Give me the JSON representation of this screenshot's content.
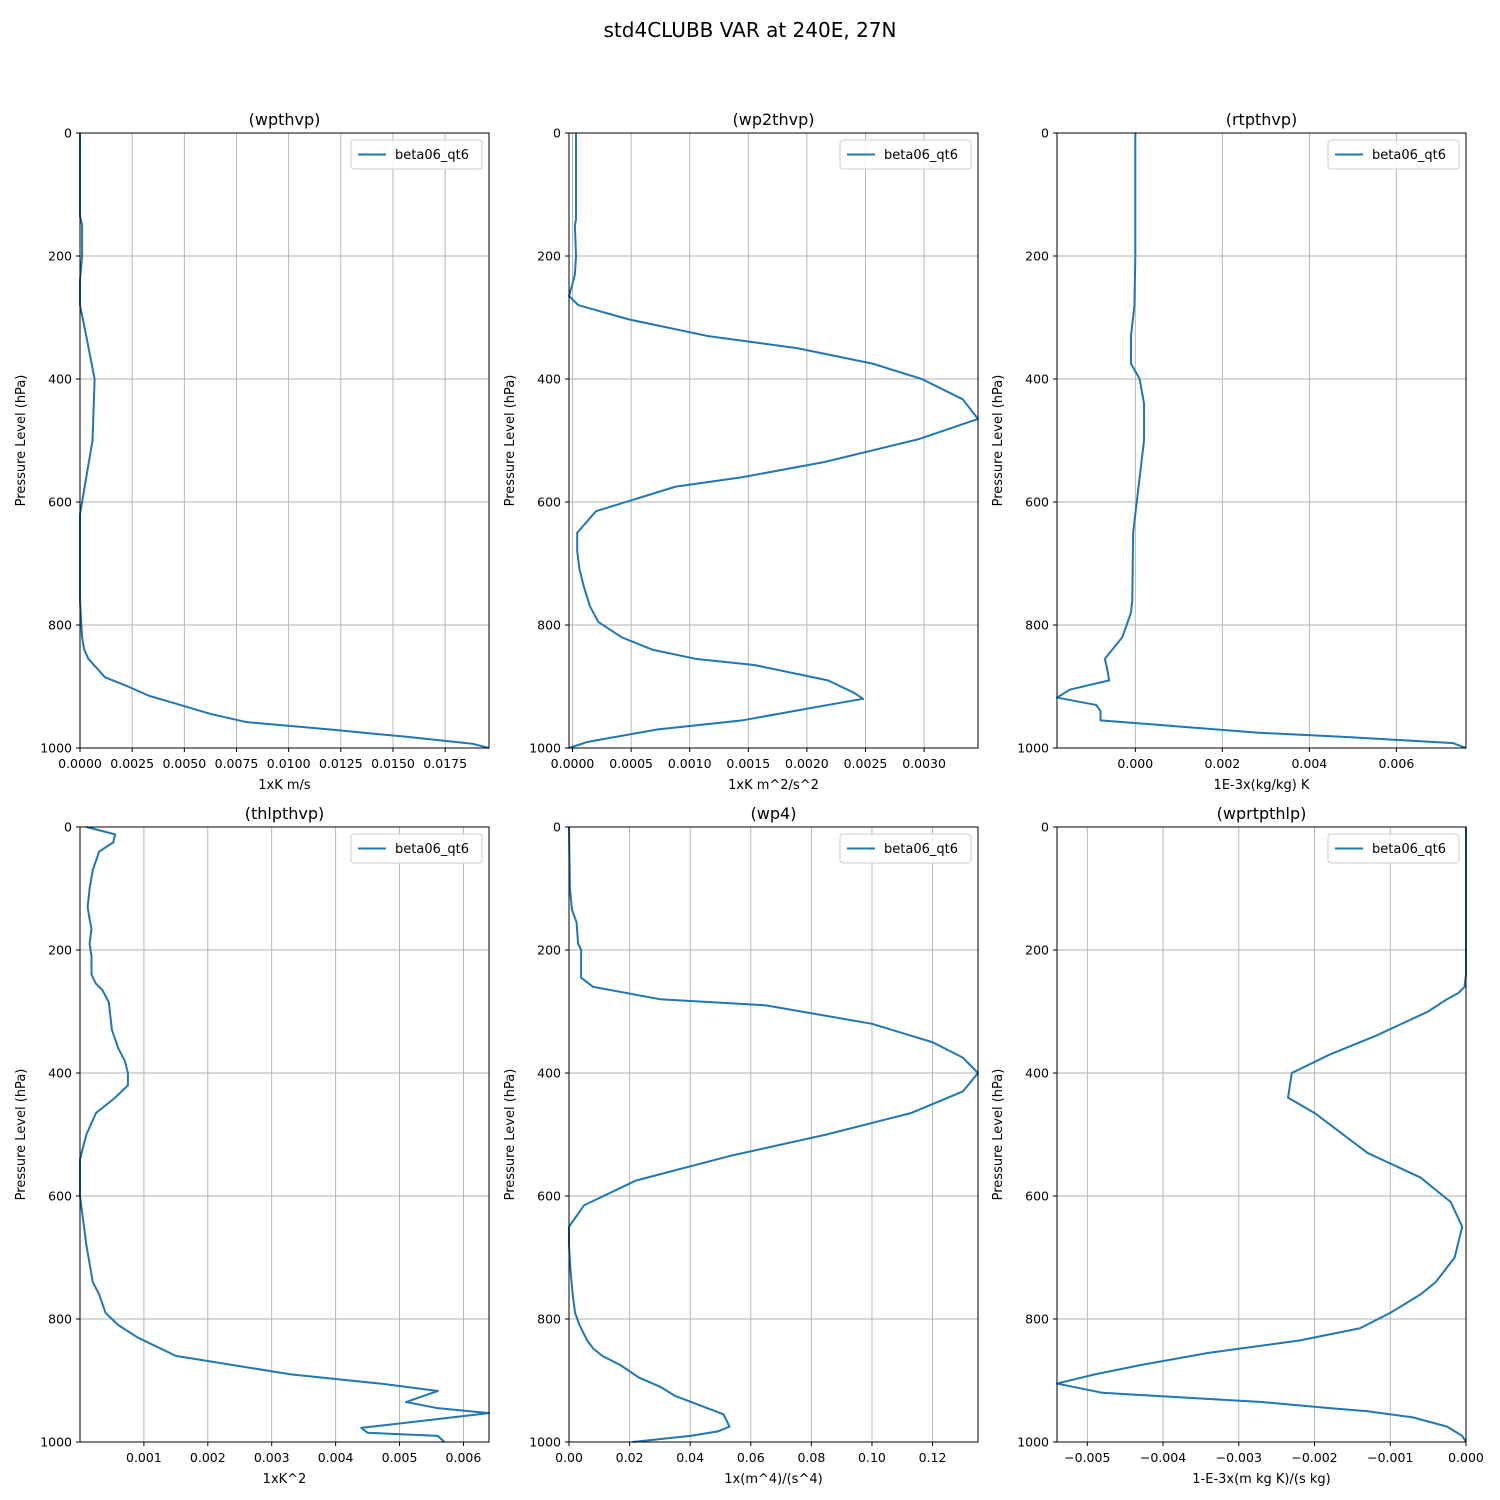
{
  "figure": {
    "title": "std4CLUBB VAR at 240E, 27N"
  },
  "colors": {
    "series": "#1f77b4",
    "grid": "#b0b0b0"
  },
  "chart_data": [
    {
      "type": "line",
      "title": "(wpthvp)",
      "xlabel": "1xK m/s",
      "ylabel": "Pressure Level (hPa)",
      "xlim": [
        0,
        0.0196
      ],
      "ylim": [
        1000,
        0
      ],
      "xticks": [
        0,
        0.0025,
        0.005,
        0.0075,
        0.01,
        0.0125,
        0.015,
        0.0175
      ],
      "xtick_labels": [
        "0.0000",
        "0.0025",
        "0.0050",
        "0.0075",
        "0.0100",
        "0.0125",
        "0.0150",
        "0.0175"
      ],
      "yticks": [
        0,
        200,
        400,
        600,
        800,
        1000
      ],
      "ytick_labels": [
        "0",
        "200",
        "400",
        "600",
        "800",
        "1000"
      ],
      "grid": true,
      "legend": "upper right",
      "series": [
        {
          "name": "beta06_qt6",
          "x": [
            0,
            0,
            0.0001,
            0.0001,
            0,
            0,
            0.0003,
            0.0007,
            0.0006,
            0.0002,
            0,
            0,
            0,
            0.0001,
            0.0002,
            0.0004,
            0.0008,
            0.0012,
            0.0023,
            0.0033,
            0.0048,
            0.0063,
            0.008,
            0.012,
            0.0157,
            0.0188,
            0.0196
          ],
          "y": [
            0,
            135,
            150,
            200,
            240,
            280,
            330,
            400,
            500,
            580,
            620,
            680,
            760,
            820,
            840,
            855,
            870,
            885,
            900,
            915,
            930,
            945,
            958,
            970,
            982,
            993,
            1000
          ]
        }
      ]
    },
    {
      "type": "line",
      "title": "(wp2thvp)",
      "xlabel": "1xK m^2/s^2",
      "ylabel": "Pressure Level (hPa)",
      "xlim": [
        -3e-05,
        0.00346
      ],
      "ylim": [
        1000,
        0
      ],
      "xticks": [
        0,
        0.0005,
        0.001,
        0.0015,
        0.002,
        0.0025,
        0.003
      ],
      "xtick_labels": [
        "0.0000",
        "0.0005",
        "0.0010",
        "0.0015",
        "0.0020",
        "0.0025",
        "0.0030"
      ],
      "yticks": [
        0,
        200,
        400,
        600,
        800,
        1000
      ],
      "ytick_labels": [
        "0",
        "200",
        "400",
        "600",
        "800",
        "1000"
      ],
      "grid": true,
      "legend": "upper right",
      "series": [
        {
          "name": "beta06_qt6",
          "x": [
            3e-05,
            3e-05,
            2e-05,
            3e-05,
            2e-05,
            0,
            -3e-05,
            5e-05,
            0.00048,
            0.00115,
            0.00192,
            0.00256,
            0.00298,
            0.00333,
            0.00346,
            0.00295,
            0.00215,
            0.00144,
            0.00088,
            0.0002,
            4e-05,
            4e-05,
            6e-05,
            0.0001,
            0.00015,
            0.00022,
            0.00042,
            0.00068,
            0.00105,
            0.00155,
            0.00218,
            0.0024,
            0.00248,
            0.00218,
            0.00145,
            0.00072,
            0.00013,
            -3e-05
          ],
          "y": [
            0,
            140,
            150,
            200,
            230,
            245,
            265,
            280,
            303,
            330,
            350,
            375,
            400,
            433,
            465,
            498,
            535,
            560,
            575,
            615,
            650,
            680,
            710,
            740,
            770,
            795,
            820,
            840,
            855,
            865,
            890,
            910,
            920,
            930,
            955,
            970,
            990,
            1000
          ]
        }
      ]
    },
    {
      "type": "line",
      "title": "(rtpthvp)",
      "xlabel": "1E-3x(kg/kg) K",
      "ylabel": "Pressure Level (hPa)",
      "xlim": [
        -0.0018,
        0.0076
      ],
      "ylim": [
        1000,
        0
      ],
      "xticks": [
        0,
        0.002,
        0.004,
        0.006
      ],
      "xtick_labels": [
        "0.000",
        "0.002",
        "0.004",
        "0.006"
      ],
      "yticks": [
        0,
        200,
        400,
        600,
        800,
        1000
      ],
      "ytick_labels": [
        "0",
        "200",
        "400",
        "600",
        "800",
        "1000"
      ],
      "grid": true,
      "legend": "upper right",
      "series": [
        {
          "name": "beta06_qt6",
          "x": [
            0,
            0,
            -2e-05,
            -0.0001,
            -0.0001,
            0.0001,
            0.0002,
            0.0002,
            0.0001,
            -5e-05,
            -7e-05,
            -0.0001,
            -0.0002,
            -0.0003,
            -0.0007,
            -0.00065,
            -0.0006,
            -0.0015,
            -0.0018,
            -0.0009,
            -0.0008,
            -0.0008,
            0.001,
            0.0028,
            0.0048,
            0.0073,
            0.0076
          ],
          "y": [
            0,
            200,
            280,
            330,
            375,
            400,
            440,
            500,
            560,
            650,
            760,
            780,
            800,
            820,
            855,
            870,
            890,
            905,
            918,
            930,
            940,
            955,
            965,
            975,
            982,
            992,
            1000
          ]
        }
      ]
    },
    {
      "type": "line",
      "title": "(thlpthvp)",
      "xlabel": "1xK^2",
      "ylabel": "Pressure Level (hPa)",
      "xlim": [
        0,
        0.0064
      ],
      "ylim": [
        1000,
        0
      ],
      "xticks": [
        0.001,
        0.002,
        0.003,
        0.004,
        0.005,
        0.006
      ],
      "xtick_labels": [
        "0.001",
        "0.002",
        "0.003",
        "0.004",
        "0.005",
        "0.006"
      ],
      "yticks": [
        0,
        200,
        400,
        600,
        800,
        1000
      ],
      "ytick_labels": [
        "0",
        "200",
        "400",
        "600",
        "800",
        "1000"
      ],
      "grid": true,
      "legend": "upper right",
      "series": [
        {
          "name": "beta06_qt6",
          "x": [
            0.0001,
            0.00055,
            0.00052,
            0.0003,
            0.0002,
            0.00015,
            0.00012,
            0.00015,
            0.00018,
            0.00015,
            0.00018,
            0.00018,
            0.00018,
            0.00025,
            0.00035,
            0.00045,
            0.0005,
            0.0006,
            0.0007,
            0.00075,
            0.00075,
            0.00055,
            0.00025,
            0.0001,
            0,
            0,
            0.0001,
            0.0002,
            0.0003,
            0.0004,
            0.0006,
            0.0009,
            0.0015,
            0.0024,
            0.0033,
            0.0047,
            0.0056,
            0.0051,
            0.0056,
            0.0064,
            0.0044,
            0.0045,
            0.0056,
            0.0057
          ],
          "y": [
            0,
            12,
            25,
            40,
            70,
            100,
            130,
            150,
            165,
            190,
            210,
            230,
            240,
            255,
            265,
            285,
            330,
            360,
            380,
            400,
            420,
            440,
            465,
            500,
            540,
            600,
            680,
            740,
            760,
            790,
            810,
            830,
            860,
            875,
            890,
            905,
            917,
            935,
            945,
            953,
            977,
            985,
            990,
            1000
          ]
        }
      ]
    },
    {
      "type": "line",
      "title": "(wp4)",
      "xlabel": "1x(m^4)/(s^4)",
      "ylabel": "Pressure Level (hPa)",
      "xlim": [
        0,
        0.135
      ],
      "ylim": [
        1000,
        0
      ],
      "xticks": [
        0,
        0.02,
        0.04,
        0.06,
        0.08,
        0.1,
        0.12
      ],
      "xtick_labels": [
        "0.00",
        "0.02",
        "0.04",
        "0.06",
        "0.08",
        "0.10",
        "0.12"
      ],
      "yticks": [
        0,
        200,
        400,
        600,
        800,
        1000
      ],
      "ytick_labels": [
        "0",
        "200",
        "400",
        "600",
        "800",
        "1000"
      ],
      "grid": true,
      "legend": "upper right",
      "series": [
        {
          "name": "beta06_qt6",
          "x": [
            0,
            0.0003,
            0.001,
            0.0025,
            0.003,
            0.004,
            0.004,
            0.008,
            0.03,
            0.065,
            0.1,
            0.12,
            0.13,
            0.135,
            0.13,
            0.113,
            0.085,
            0.053,
            0.022,
            0.005,
            0,
            0,
            0.0005,
            0.0012,
            0.002,
            0.0035,
            0.006,
            0.008,
            0.011,
            0.017,
            0.023,
            0.03,
            0.035,
            0.051,
            0.053,
            0.049,
            0.04,
            0.021
          ],
          "y": [
            0,
            100,
            135,
            155,
            190,
            200,
            245,
            260,
            280,
            290,
            320,
            350,
            375,
            400,
            430,
            465,
            500,
            535,
            575,
            615,
            650,
            680,
            720,
            760,
            790,
            810,
            835,
            848,
            860,
            875,
            895,
            910,
            925,
            955,
            975,
            983,
            990,
            1000
          ]
        }
      ]
    },
    {
      "type": "line",
      "title": "(wprtpthlp)",
      "xlabel": "1-E-3x(m kg K)/(s kg)",
      "ylabel": "Pressure Level (hPa)",
      "xlim": [
        -0.0054,
        0
      ],
      "ylim": [
        1000,
        0
      ],
      "xticks": [
        -0.005,
        -0.004,
        -0.003,
        -0.002,
        -0.001,
        0
      ],
      "xtick_labels": [
        "−0.005",
        "−0.004",
        "−0.003",
        "−0.002",
        "−0.001",
        "0.000"
      ],
      "yticks": [
        0,
        200,
        400,
        600,
        800,
        1000
      ],
      "ytick_labels": [
        "0",
        "200",
        "400",
        "600",
        "800",
        "1000"
      ],
      "grid": true,
      "legend": "upper right",
      "series": [
        {
          "name": "beta06_qt6",
          "x": [
            0,
            0,
            -2e-05,
            -0.0001,
            -0.00025,
            -0.0005,
            -0.0012,
            -0.0018,
            -0.0023,
            -0.00235,
            -0.002,
            -0.0013,
            -0.0006,
            -0.0004,
            -0.0002,
            -5e-05,
            -0.00015,
            -0.0004,
            -0.0006,
            -0.001,
            -0.0014,
            -0.0022,
            -0.0034,
            -0.0043,
            -0.0049,
            -0.0054,
            -0.0048,
            -0.0027,
            -0.0018,
            -0.0013,
            -0.0007,
            -0.00025,
            -5e-05,
            0
          ],
          "y": [
            0,
            240,
            260,
            270,
            280,
            300,
            340,
            370,
            400,
            440,
            465,
            530,
            570,
            590,
            610,
            650,
            700,
            740,
            760,
            790,
            815,
            835,
            855,
            875,
            890,
            905,
            920,
            935,
            945,
            950,
            960,
            975,
            990,
            1000
          ]
        }
      ]
    }
  ]
}
